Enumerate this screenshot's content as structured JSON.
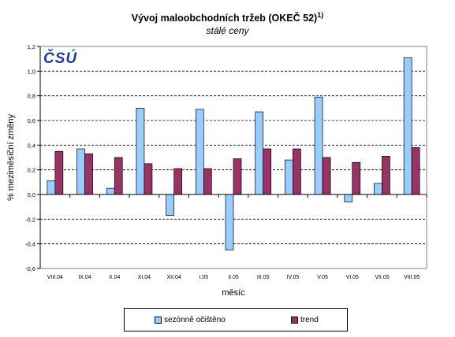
{
  "chart_data": {
    "type": "bar",
    "title": "Vývoj maloobchodních tržeb (OKEČ 52)",
    "title_sup": "1)",
    "subtitle": "stálé ceny",
    "xlabel": "měsíc",
    "ylabel": "% meziměsíční změny",
    "ylim": [
      -0.6,
      1.2
    ],
    "yticks": [
      "1,2",
      "1,0",
      "0,8",
      "0,6",
      "0,4",
      "0,2",
      "0,0",
      "-0,2",
      "-0,4",
      "-0,6"
    ],
    "ytick_values": [
      1.2,
      1.0,
      0.8,
      0.6,
      0.4,
      0.2,
      0.0,
      -0.2,
      -0.4,
      -0.6
    ],
    "grid": true,
    "legend_position": "bottom",
    "categories": [
      "VIII.04",
      "IX.04",
      "X.04",
      "XI.04",
      "XII.04",
      "I.05",
      "II.05",
      "III.05",
      "IV.05",
      "V.05",
      "VI.05",
      "VII.05",
      "VIII.05"
    ],
    "series": [
      {
        "name": "sezónně očištěno",
        "color": "#99ccff",
        "values": [
          0.11,
          0.37,
          0.05,
          0.7,
          -0.17,
          0.69,
          -0.45,
          0.67,
          0.28,
          0.79,
          -0.06,
          0.09,
          1.11
        ]
      },
      {
        "name": "trend",
        "color": "#993366",
        "values": [
          0.35,
          0.33,
          0.3,
          0.25,
          0.21,
          0.21,
          0.29,
          0.37,
          0.37,
          0.3,
          0.26,
          0.31,
          0.38
        ]
      }
    ]
  },
  "logo": {
    "text": "ČSÚ",
    "color": "#1b3f9b"
  }
}
